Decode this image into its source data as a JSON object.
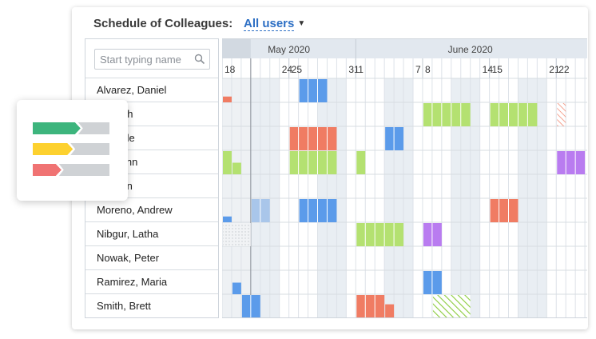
{
  "header": {
    "title": "Schedule of Colleagues:",
    "users_filter": "All users"
  },
  "search": {
    "placeholder": "Start typing name"
  },
  "months": [
    {
      "label": "May 2020",
      "start_day": 0,
      "span": 14
    },
    {
      "label": "June 2020",
      "start_day": 14,
      "span": 24
    }
  ],
  "day_labels": [
    {
      "day": 0,
      "text": "18"
    },
    {
      "day": 6,
      "text": "24"
    },
    {
      "day": 7,
      "text": "25"
    },
    {
      "day": 13,
      "text": "31"
    },
    {
      "day": 14,
      "text": "1"
    },
    {
      "day": 20,
      "text": "7"
    },
    {
      "day": 21,
      "text": "8"
    },
    {
      "day": 27,
      "text": "14"
    },
    {
      "day": 28,
      "text": "15"
    },
    {
      "day": 34,
      "text": "21"
    },
    {
      "day": 35,
      "text": "22"
    }
  ],
  "weekend_days": [
    3,
    4,
    5,
    10,
    11,
    12,
    17,
    18,
    19,
    24,
    25,
    26,
    31,
    32,
    33
  ],
  "today_day": 2,
  "colors": {
    "blue": "#5b9bea",
    "green": "#b4e171",
    "red": "#f07c63",
    "purple": "#b97cf0",
    "pale_blue": "#a9c6ea",
    "hatch_green": "#8ccc3e",
    "hatch_red": "#f07c63",
    "weekend": "#e9eef3",
    "header": "#e2e8ef"
  },
  "people": [
    {
      "name": "Alvarez, Daniel",
      "events": [
        {
          "start": 8,
          "days": 3,
          "color": "blue"
        },
        {
          "start": 0,
          "days": 1,
          "color": "red",
          "level": 0.25
        }
      ]
    },
    {
      "name": "Hannah",
      "events": [
        {
          "start": 21,
          "days": 5,
          "color": "green"
        },
        {
          "start": 28,
          "days": 5,
          "color": "green"
        },
        {
          "start": 35,
          "days": 1,
          "color": "red",
          "style": "hatch"
        }
      ]
    },
    {
      "name": "Michelle",
      "events": [
        {
          "start": 7,
          "days": 5,
          "color": "red"
        },
        {
          "start": 17,
          "days": 2,
          "color": "blue"
        }
      ]
    },
    {
      "name": "ws, John",
      "events": [
        {
          "start": 0,
          "days": 1,
          "color": "green"
        },
        {
          "start": 1,
          "days": 1,
          "color": "green",
          "level": 0.5
        },
        {
          "start": 7,
          "days": 5,
          "color": "green"
        },
        {
          "start": 14,
          "days": 1,
          "color": "green"
        },
        {
          "start": 35,
          "days": 3,
          "color": "purple"
        }
      ]
    },
    {
      "name": ", Allison",
      "events": []
    },
    {
      "name": "Moreno, Andrew",
      "events": [
        {
          "start": 0,
          "days": 1,
          "color": "blue",
          "level": 0.25
        },
        {
          "start": 3,
          "days": 2,
          "color": "pale_blue"
        },
        {
          "start": 8,
          "days": 4,
          "color": "blue"
        },
        {
          "start": 28,
          "days": 3,
          "color": "red"
        }
      ]
    },
    {
      "name": "Nibgur, Latha",
      "events": [
        {
          "start": 0,
          "days": 3,
          "color": "grey",
          "style": "dots"
        },
        {
          "start": 14,
          "days": 5,
          "color": "green"
        },
        {
          "start": 21,
          "days": 2,
          "color": "purple"
        }
      ]
    },
    {
      "name": "Nowak, Peter",
      "events": []
    },
    {
      "name": "Ramirez, Maria",
      "events": [
        {
          "start": 1,
          "days": 1,
          "color": "blue",
          "level": 0.5
        },
        {
          "start": 21,
          "days": 2,
          "color": "blue"
        }
      ]
    },
    {
      "name": "Smith, Brett",
      "events": [
        {
          "start": 2,
          "days": 2,
          "color": "blue"
        },
        {
          "start": 14,
          "days": 3,
          "color": "red"
        },
        {
          "start": 17,
          "days": 1,
          "color": "red",
          "level": 0.6
        },
        {
          "start": 22,
          "days": 4,
          "color": "green",
          "style": "hatch"
        }
      ]
    }
  ],
  "legend": {
    "bars": [
      {
        "color": "#3db57d",
        "level": 0.55
      },
      {
        "color": "#fdd12f",
        "level": 0.45
      },
      {
        "color": "#f07373",
        "level": 0.3
      }
    ],
    "track_color": "#cfd2d5"
  }
}
